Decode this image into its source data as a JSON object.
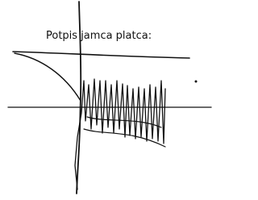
{
  "document": {
    "label": "Potpis jamca platca:"
  }
}
